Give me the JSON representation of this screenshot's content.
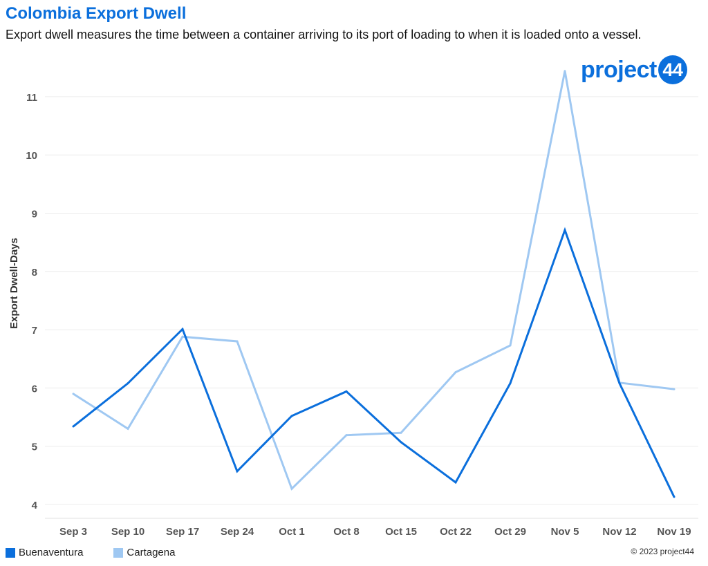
{
  "header": {
    "title": "Colombia Export Dwell",
    "subtitle": "Export dwell measures the time between a container arriving to its port of loading to when it is loaded onto a vessel."
  },
  "logo": {
    "text": "project",
    "badge": "44"
  },
  "footer": {
    "copyright": "© 2023 project44"
  },
  "colors": {
    "buenaventura": "#0b6fdc",
    "cartagena": "#9fc8f2",
    "title": "#0b6fdc"
  },
  "chart_data": {
    "type": "line",
    "title": "Colombia Export Dwell",
    "ylabel": "Export Dwell-Days",
    "xlabel": "",
    "categories": [
      "Sep 3",
      "Sep 10",
      "Sep 17",
      "Sep 24",
      "Oct 1",
      "Oct 8",
      "Oct 15",
      "Oct 22",
      "Oct 29",
      "Nov 5",
      "Nov 12",
      "Nov 19"
    ],
    "y_ticks": [
      4,
      5,
      6,
      7,
      8,
      9,
      10,
      11
    ],
    "ylim": [
      3.8,
      11.9
    ],
    "grid": true,
    "legend_position": "bottom-left",
    "series": [
      {
        "name": "Buenaventura",
        "values": [
          5.34,
          6.08,
          7.01,
          4.57,
          5.52,
          5.94,
          5.07,
          4.38,
          6.08,
          8.71,
          6.08,
          4.13
        ]
      },
      {
        "name": "Cartagena",
        "values": [
          5.9,
          5.3,
          6.88,
          6.8,
          4.27,
          5.19,
          5.23,
          6.27,
          6.73,
          11.44,
          6.09,
          5.98
        ]
      }
    ]
  }
}
